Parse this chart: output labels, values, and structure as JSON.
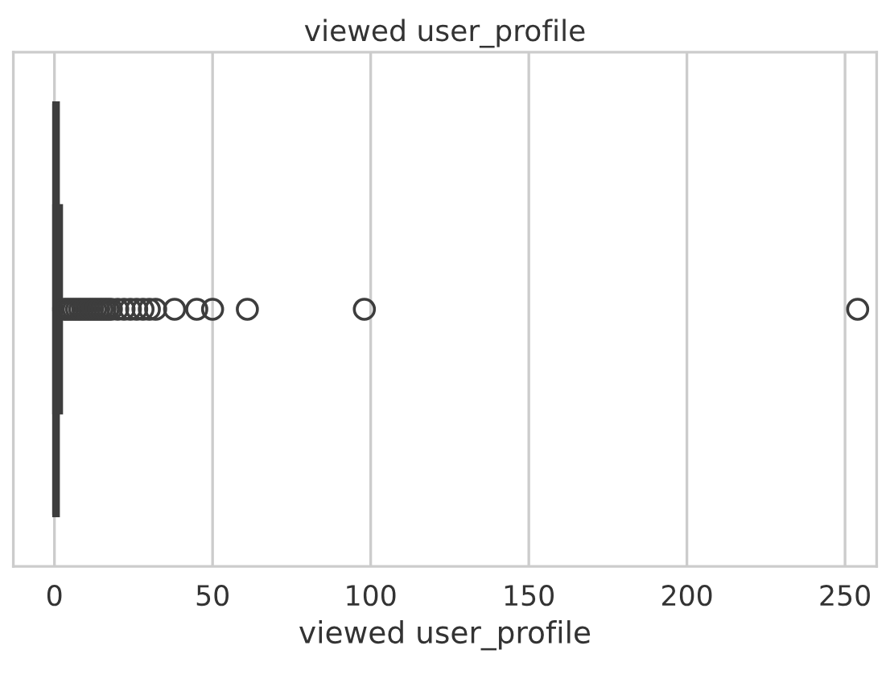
{
  "chart_data": {
    "type": "box",
    "title": "viewed user_profile",
    "xlabel": "viewed user_profile",
    "orientation": "horizontal",
    "categories": [
      null
    ],
    "boxes": [
      {
        "low": 0,
        "q1": 0,
        "median": 0,
        "q3": 1,
        "high": 2,
        "outliers": [
          3,
          4,
          5,
          6,
          7,
          8,
          9,
          10,
          11,
          12,
          13,
          14,
          15,
          16,
          17,
          18,
          20,
          22,
          24,
          26,
          28,
          30,
          32,
          38,
          45,
          50,
          61,
          98,
          254
        ]
      }
    ],
    "color": "#3d3d3d",
    "xlim": [
      -13,
      260
    ],
    "xticks": [
      0,
      50,
      100,
      150,
      200,
      250
    ],
    "grid": "x",
    "tick_labels": "x"
  }
}
